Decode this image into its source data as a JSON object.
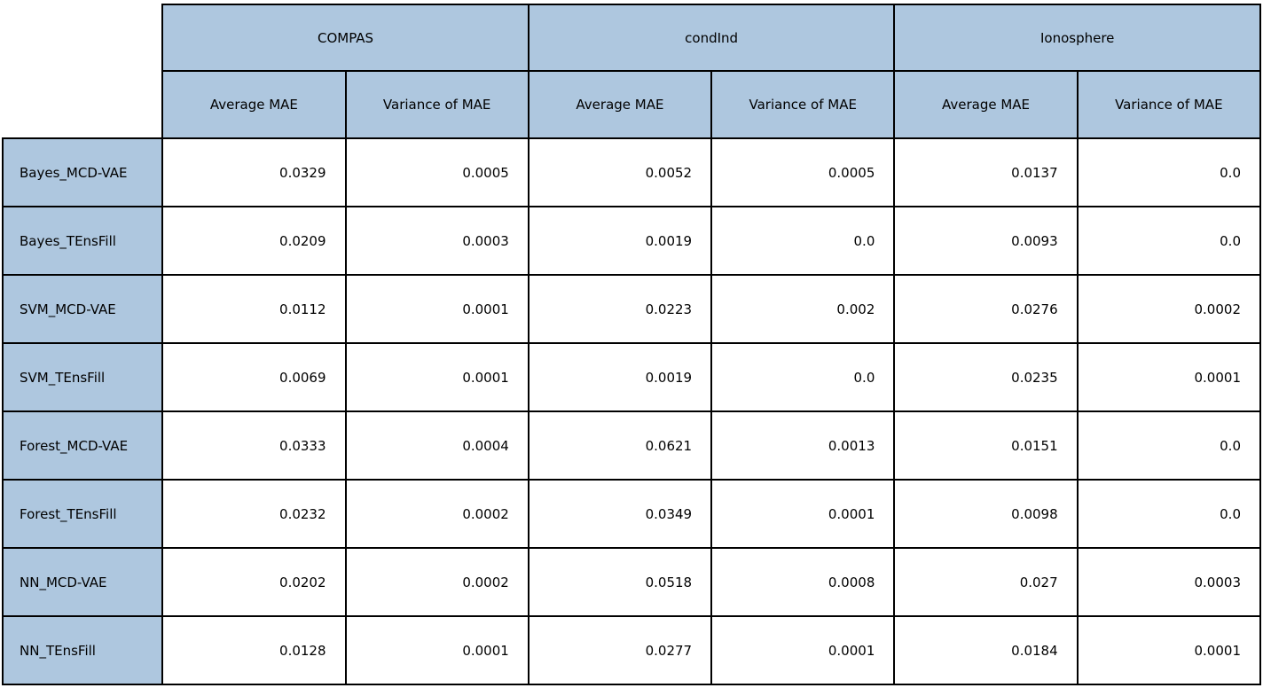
{
  "chart_data": {
    "type": "table",
    "title": "",
    "col_groups": [
      {
        "label": "COMPAS"
      },
      {
        "label": "condInd"
      },
      {
        "label": "Ionosphere"
      }
    ],
    "sub_headers": [
      "Average MAE",
      "Variance of MAE",
      "Average MAE",
      "Variance of MAE",
      "Average MAE",
      "Variance of MAE"
    ],
    "rows": [
      {
        "label": "Bayes_MCD-VAE",
        "values": [
          "0.0329",
          "0.0005",
          "0.0052",
          "0.0005",
          "0.0137",
          "0.0"
        ]
      },
      {
        "label": "Bayes_TEnsFill",
        "values": [
          "0.0209",
          "0.0003",
          "0.0019",
          "0.0",
          "0.0093",
          "0.0"
        ]
      },
      {
        "label": "SVM_MCD-VAE",
        "values": [
          "0.0112",
          "0.0001",
          "0.0223",
          "0.002",
          "0.0276",
          "0.0002"
        ]
      },
      {
        "label": "SVM_TEnsFill",
        "values": [
          "0.0069",
          "0.0001",
          "0.0019",
          "0.0",
          "0.0235",
          "0.0001"
        ]
      },
      {
        "label": "Forest_MCD-VAE",
        "values": [
          "0.0333",
          "0.0004",
          "0.0621",
          "0.0013",
          "0.0151",
          "0.0"
        ]
      },
      {
        "label": "Forest_TEnsFill",
        "values": [
          "0.0232",
          "0.0002",
          "0.0349",
          "0.0001",
          "0.0098",
          "0.0"
        ]
      },
      {
        "label": "NN_MCD-VAE",
        "values": [
          "0.0202",
          "0.0002",
          "0.0518",
          "0.0008",
          "0.027",
          "0.0003"
        ]
      },
      {
        "label": "NN_TEnsFill",
        "values": [
          "0.0128",
          "0.0001",
          "0.0277",
          "0.0001",
          "0.0184",
          "0.0001"
        ]
      }
    ],
    "colors": {
      "header_fill": "#aec7df",
      "cell_fill": "#ffffff",
      "border": "#000000",
      "text": "#000000"
    },
    "layout": {
      "grid": true,
      "numeric_alignment": "right",
      "header_alignment": "center"
    }
  }
}
